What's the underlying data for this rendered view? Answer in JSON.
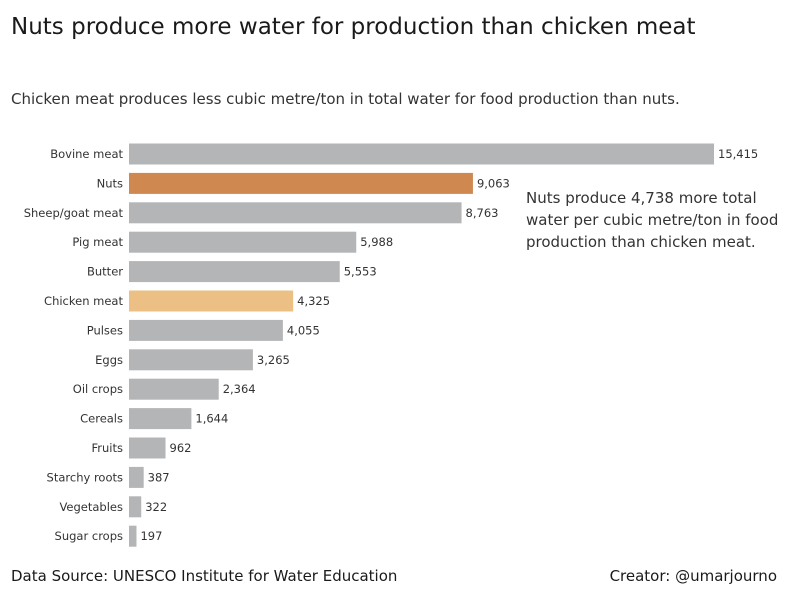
{
  "page": {
    "title": "Nuts produce more water for production than chicken meat",
    "subtitle": "Chicken meat produces less cubic metre/ton in total water for food production than nuts.",
    "annotation": "Nuts produce 4,738 more total water per cubic metre/ton in food production than chicken meat.",
    "footer_source": "Data Source: UNESCO Institute for Water Education",
    "footer_creator": "Creator: @umarjourno"
  },
  "colors": {
    "default_bar": "#b3b5b7",
    "nuts_bar": "#d08851",
    "chicken_bar": "#ecc084"
  },
  "chart_data": {
    "type": "bar",
    "orientation": "horizontal",
    "title": "Nuts produce more water for production than chicken meat",
    "subtitle": "Chicken meat produces less cubic metre/ton in total water for food production than nuts.",
    "xlabel": "",
    "ylabel": "",
    "xlim": [
      0,
      15415
    ],
    "grid": false,
    "categories": [
      "Bovine meat",
      "Nuts",
      "Sheep/goat meat",
      "Pig meat",
      "Butter",
      "Chicken meat",
      "Pulses",
      "Eggs",
      "Oil crops",
      "Cereals",
      "Fruits",
      "Starchy roots",
      "Vegetables",
      "Sugar crops"
    ],
    "values": [
      15415,
      9063,
      8763,
      5988,
      5553,
      4325,
      4055,
      3265,
      2364,
      1644,
      962,
      387,
      322,
      197
    ],
    "value_labels": [
      "15,415",
      "9,063",
      "8,763",
      "5,988",
      "5,553",
      "4,325",
      "4,055",
      "3,265",
      "2,364",
      "1,644",
      "962",
      "387",
      "322",
      "197"
    ],
    "highlight": {
      "Nuts": "nuts_bar",
      "Chicken meat": "chicken_bar"
    },
    "annotations": [
      "Nuts produce 4,738 more total water per cubic metre/ton in food production than chicken meat."
    ]
  }
}
